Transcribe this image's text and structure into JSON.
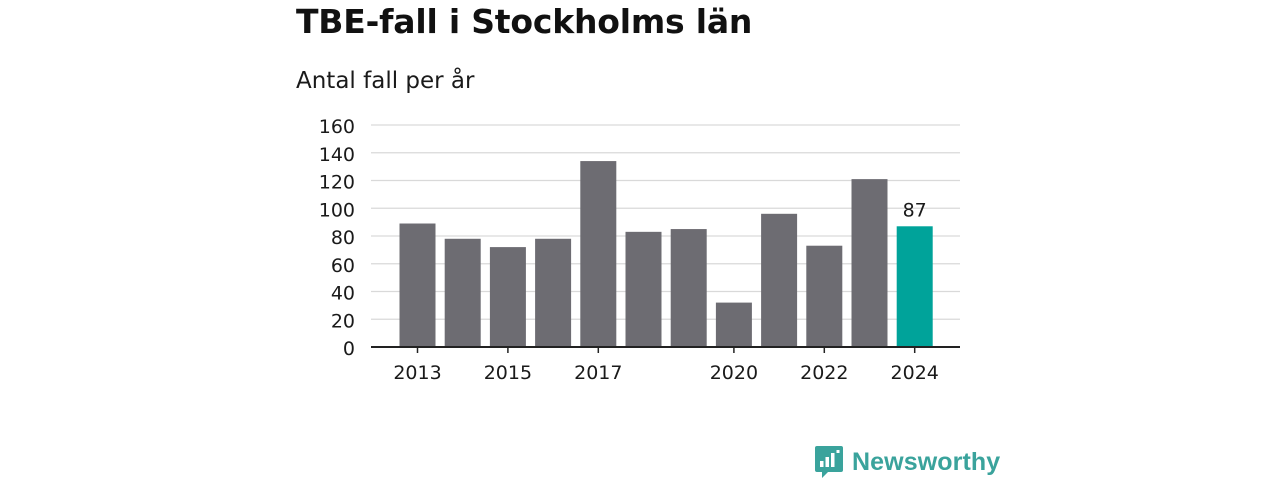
{
  "title": "TBE-fall i Stockholms län",
  "subtitle": "Antal fall per år",
  "brand": {
    "name": "Newsworthy",
    "icon": "newsworthy-logo-icon",
    "color": "#3aa39c"
  },
  "colors": {
    "bar": "#6d6c72",
    "highlight": "#00a39a",
    "grid": "#d9d9d9",
    "axis": "#222222",
    "text": "#1a1a1a"
  },
  "chart_data": {
    "type": "bar",
    "title": "TBE-fall i Stockholms län",
    "subtitle": "Antal fall per år",
    "xlabel": "",
    "ylabel": "",
    "categories": [
      "2013",
      "2014",
      "2015",
      "2016",
      "2017",
      "2018",
      "2019",
      "2020",
      "2021",
      "2022",
      "2023",
      "2024"
    ],
    "x_tick_labels": [
      "2013",
      "2015",
      "2017",
      "2020",
      "2022",
      "2024"
    ],
    "values": [
      89,
      78,
      72,
      78,
      134,
      83,
      85,
      32,
      96,
      73,
      121,
      87
    ],
    "highlight_index": 11,
    "data_labels": [
      {
        "category": "2024",
        "text": "87"
      }
    ],
    "ylim": [
      0,
      160
    ],
    "y_ticks": [
      0,
      20,
      40,
      60,
      80,
      100,
      120,
      140,
      160
    ],
    "grid": true,
    "legend": "none"
  }
}
